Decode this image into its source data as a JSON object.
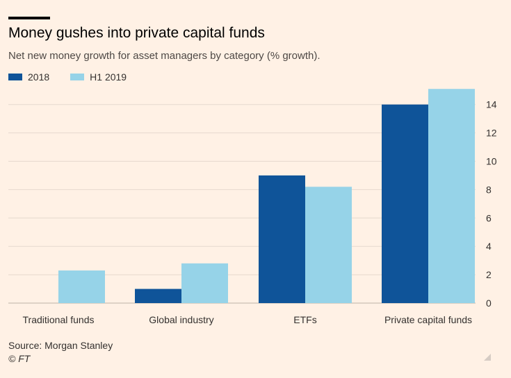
{
  "title": "Money gushes into private capital funds",
  "subtitle": "Net new money growth for asset managers by category (% growth).",
  "source": "Source: Morgan Stanley",
  "copyright": "© FT",
  "colors": {
    "s2018": "#0F5499",
    "sH12019": "#96D3E8",
    "grid": "#E6D9CE",
    "background": "#FFF1E5"
  },
  "chart_data": {
    "type": "bar",
    "categories": [
      "Traditional funds",
      "Global industry",
      "ETFs",
      "Private capital funds"
    ],
    "series": [
      {
        "name": "2018",
        "values": [
          0,
          1,
          9,
          14
        ]
      },
      {
        "name": "H1 2019",
        "values": [
          2.3,
          2.8,
          8.2,
          15.1
        ]
      }
    ],
    "yticks": [
      0,
      2,
      4,
      6,
      8,
      10,
      12,
      14
    ],
    "ylim": [
      0,
      16
    ],
    "y_axis_side": "right",
    "grid": true,
    "legend_position": "top-left"
  }
}
